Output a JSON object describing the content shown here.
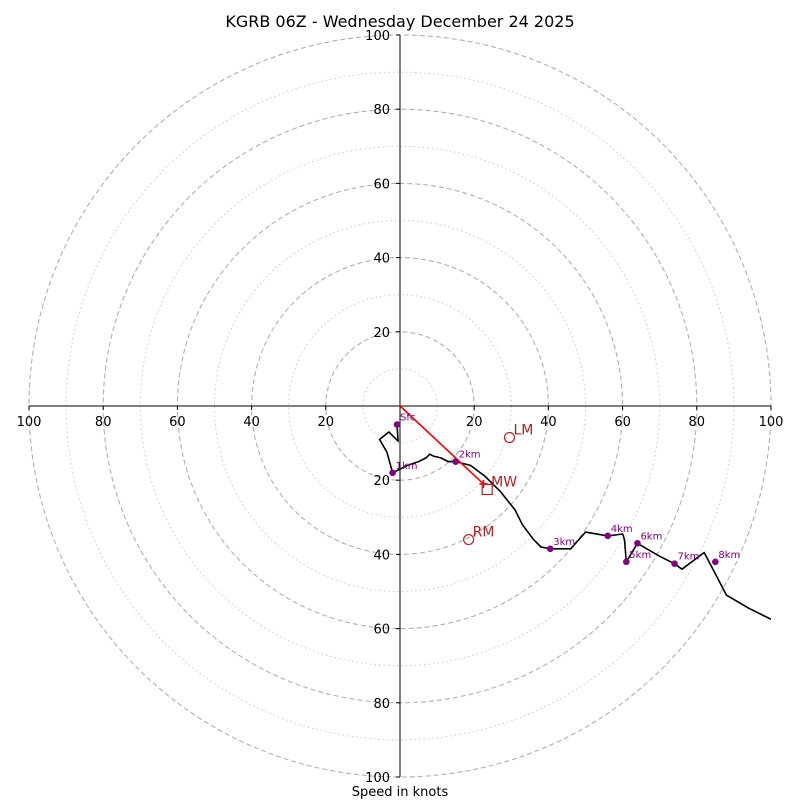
{
  "chart_data": {
    "type": "hodograph",
    "title": "KGRB 06Z - Wednesday December 24 2025",
    "xlabel": "Speed in knots",
    "units": "knots",
    "rings_major": [
      20,
      40,
      60,
      80,
      100
    ],
    "rings_minor": [
      10,
      30,
      50,
      70,
      90
    ],
    "axis_max": 100,
    "tick_labels": [
      "100",
      "80",
      "60",
      "40",
      "20",
      "20",
      "40",
      "60",
      "80",
      "100"
    ],
    "ytick_labels_up": [
      "20",
      "40",
      "60",
      "80",
      "100"
    ],
    "ytick_labels_down": [
      "20",
      "40",
      "60",
      "80",
      "100"
    ],
    "xtick_values": [
      -100,
      -80,
      -60,
      -40,
      -20,
      20,
      40,
      60,
      80,
      100
    ],
    "ytick_values_up": [
      20,
      40,
      60,
      80,
      100
    ],
    "ytick_values_down": [
      -20,
      -40,
      -60,
      -80,
      -100
    ],
    "hodograph_trace": {
      "u": [
        -0.8,
        -0.5,
        -3,
        -5.5,
        -3.5,
        -2,
        2,
        5,
        7,
        8,
        9,
        11,
        13,
        15,
        19,
        23,
        27,
        31,
        33,
        36,
        38,
        40.5,
        46,
        50,
        56,
        60,
        60.5,
        61,
        64,
        70,
        74,
        76,
        82,
        88,
        94,
        100
      ],
      "v": [
        -5,
        -9.5,
        -7,
        -9,
        -12.5,
        -18,
        -16,
        -15,
        -14,
        -13,
        -13.5,
        -14,
        -15,
        -15,
        -16,
        -19,
        -23,
        -28,
        -32,
        -36,
        -38,
        -38.5,
        -38.5,
        -34,
        -35,
        -34.5,
        -36,
        -42,
        -37,
        -40.5,
        -42.5,
        -44,
        -39.5,
        -51,
        -54.5,
        -57.5
      ]
    },
    "height_markers": [
      {
        "label": "Sfc",
        "u": -0.8,
        "v": -5
      },
      {
        "label": "1km",
        "u": -2,
        "v": -18
      },
      {
        "label": "2km",
        "u": 15,
        "v": -15
      },
      {
        "label": "3km",
        "u": 40.5,
        "v": -38.5
      },
      {
        "label": "4km",
        "u": 56,
        "v": -35
      },
      {
        "label": "5km",
        "u": 61,
        "v": -42
      },
      {
        "label": "6km",
        "u": 64,
        "v": -37
      },
      {
        "label": "7km",
        "u": 74,
        "v": -42.5
      },
      {
        "label": "8km",
        "u": 85,
        "v": -42
      }
    ],
    "motions": [
      {
        "label": "LM",
        "u": 29.5,
        "v": -8.5,
        "marker": "circle"
      },
      {
        "label": "MW",
        "u": 23.5,
        "v": -22.5,
        "marker": "square"
      },
      {
        "label": "RM",
        "u": 18.5,
        "v": -36,
        "marker": "circle"
      }
    ],
    "mean_wind_vector": {
      "u": 22.5,
      "v": -21
    },
    "colors": {
      "trace": "#000000",
      "marker": "#800080",
      "motion": "#b22222",
      "vector": "#ff0000",
      "ring": "#b0b0b0",
      "ring_minor": "#c8c8c8"
    }
  }
}
